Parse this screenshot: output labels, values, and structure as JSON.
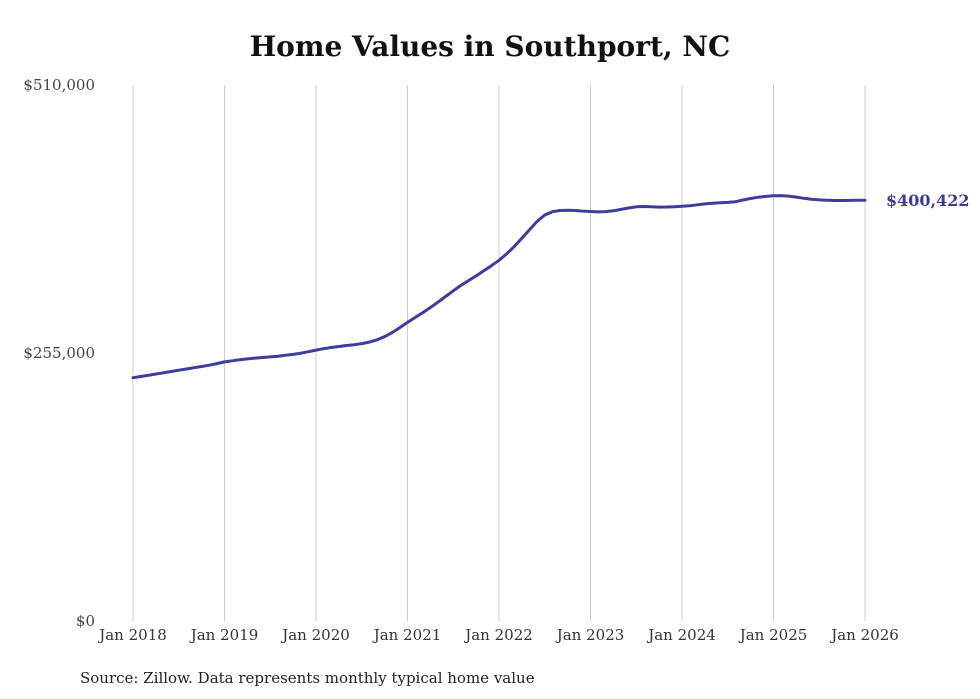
{
  "chart_data": {
    "type": "line",
    "title": "Home Values in Southport, NC",
    "xlabel": "",
    "ylabel": "",
    "ylim": [
      0,
      510000
    ],
    "grid": "vertical-only",
    "legend": "none",
    "x_tick_labels": [
      "Jan 2018",
      "Jan 2019",
      "Jan 2020",
      "Jan 2021",
      "Jan 2022",
      "Jan 2023",
      "Jan 2024",
      "Jan 2025",
      "Jan 2026"
    ],
    "y_ticks": [
      {
        "label": "$0",
        "value": 0
      },
      {
        "label": "$255,000",
        "value": 255000
      },
      {
        "label": "$510,000",
        "value": 510000
      }
    ],
    "x_frequency": "monthly",
    "series": [
      {
        "name": "Typical home value",
        "color": "#3e3c9e",
        "values": [
          231500,
          232600,
          233800,
          235000,
          236200,
          237400,
          238600,
          239800,
          241000,
          242200,
          243400,
          244900,
          246500,
          247600,
          248600,
          249400,
          250100,
          250700,
          251300,
          252000,
          252800,
          253700,
          254800,
          256200,
          257800,
          259100,
          260200,
          261200,
          262100,
          262900,
          263900,
          265400,
          267600,
          270500,
          274500,
          279200,
          284200,
          288800,
          293400,
          298300,
          303400,
          308800,
          314200,
          319300,
          323900,
          328400,
          333200,
          338100,
          343200,
          349300,
          356300,
          364200,
          372300,
          380200,
          386300,
          389400,
          390600,
          390900,
          390600,
          390000,
          389600,
          389300,
          389500,
          390300,
          391600,
          393000,
          394100,
          394400,
          394100,
          393800,
          393900,
          394200,
          394600,
          395100,
          396000,
          396900,
          397500,
          397900,
          398300,
          399000,
          400600,
          402000,
          403200,
          404000,
          404600,
          404800,
          404300,
          403300,
          402200,
          401300,
          400700,
          400300,
          400100,
          400100,
          400200,
          400350,
          400422
        ]
      }
    ],
    "end_label": "$400,422",
    "end_value": 400422
  },
  "source_note": "Source: Zillow. Data represents monthly typical home value",
  "colors": {
    "line": "#3e3c9e",
    "end_label": "#3b3b9d",
    "grid": "#cccccc",
    "axis_text": "#444444",
    "title_text": "#111111",
    "background": "#ffffff"
  }
}
